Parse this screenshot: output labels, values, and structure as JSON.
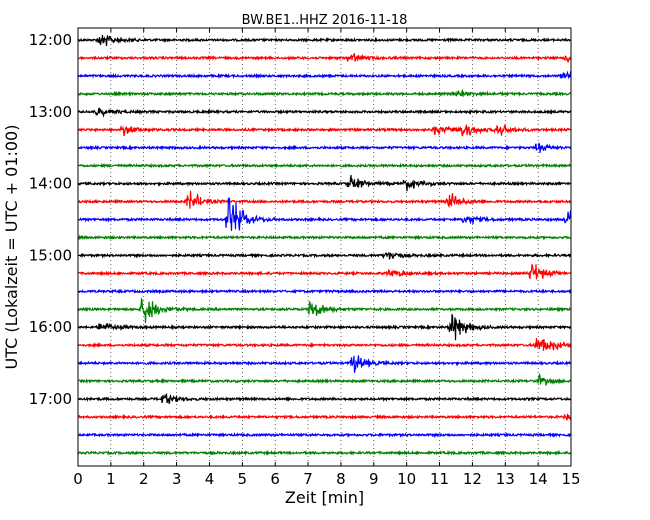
{
  "chart_data": {
    "type": "line",
    "title": "BW.BE1..HHZ 2016-11-18",
    "xlabel": "Zeit  [min]",
    "ylabel": "UTC (Lokalzeit = UTC + 01:00)",
    "xlim": [
      0,
      15
    ],
    "x_ticks": [
      0,
      1,
      2,
      3,
      4,
      5,
      6,
      7,
      8,
      9,
      10,
      11,
      12,
      13,
      14,
      15
    ],
    "y_tick_labels": [
      "12:00",
      "13:00",
      "14:00",
      "15:00",
      "16:00",
      "17:00"
    ],
    "trace_interval_min": 15,
    "first_trace": "12:00",
    "trace_count": 24,
    "trace_colors": [
      "#000000",
      "#ff0000",
      "#0000ff",
      "#008000"
    ],
    "grid": "vertical dotted",
    "events": [
      {
        "trace": 0,
        "minute": 0.7,
        "amplitude": 0.45
      },
      {
        "trace": 1,
        "minute": 8.3,
        "amplitude": 0.3
      },
      {
        "trace": 1,
        "minute": 14.9,
        "amplitude": 0.25
      },
      {
        "trace": 2,
        "minute": 14.8,
        "amplitude": 0.25
      },
      {
        "trace": 3,
        "minute": 11.5,
        "amplitude": 0.25
      },
      {
        "trace": 4,
        "minute": 0.6,
        "amplitude": 0.25
      },
      {
        "trace": 5,
        "minute": 1.4,
        "amplitude": 0.25
      },
      {
        "trace": 5,
        "minute": 10.9,
        "amplitude": 0.35
      },
      {
        "trace": 5,
        "minute": 11.7,
        "amplitude": 0.4
      },
      {
        "trace": 5,
        "minute": 12.8,
        "amplitude": 0.3
      },
      {
        "trace": 6,
        "minute": 14.0,
        "amplitude": 0.25
      },
      {
        "trace": 8,
        "minute": 8.3,
        "amplitude": 0.4
      },
      {
        "trace": 8,
        "minute": 10.0,
        "amplitude": 0.35
      },
      {
        "trace": 9,
        "minute": 3.4,
        "amplitude": 0.5
      },
      {
        "trace": 9,
        "minute": 11.3,
        "amplitude": 0.45
      },
      {
        "trace": 10,
        "minute": 4.6,
        "amplitude": 1.3
      },
      {
        "trace": 10,
        "minute": 11.8,
        "amplitude": 0.35
      },
      {
        "trace": 10,
        "minute": 14.9,
        "amplitude": 0.6
      },
      {
        "trace": 12,
        "minute": 9.4,
        "amplitude": 0.25
      },
      {
        "trace": 13,
        "minute": 9.5,
        "amplitude": 0.3
      },
      {
        "trace": 13,
        "minute": 13.8,
        "amplitude": 0.6
      },
      {
        "trace": 15,
        "minute": 2.0,
        "amplitude": 0.9
      },
      {
        "trace": 15,
        "minute": 7.1,
        "amplitude": 0.6
      },
      {
        "trace": 16,
        "minute": 0.7,
        "amplitude": 0.35
      },
      {
        "trace": 16,
        "minute": 11.4,
        "amplitude": 0.9
      },
      {
        "trace": 17,
        "minute": 14.0,
        "amplitude": 0.8
      },
      {
        "trace": 18,
        "minute": 8.4,
        "amplitude": 0.5
      },
      {
        "trace": 19,
        "minute": 14.0,
        "amplitude": 0.35
      },
      {
        "trace": 20,
        "minute": 2.6,
        "amplitude": 0.35
      },
      {
        "trace": 21,
        "minute": 14.9,
        "amplitude": 0.25
      }
    ]
  }
}
